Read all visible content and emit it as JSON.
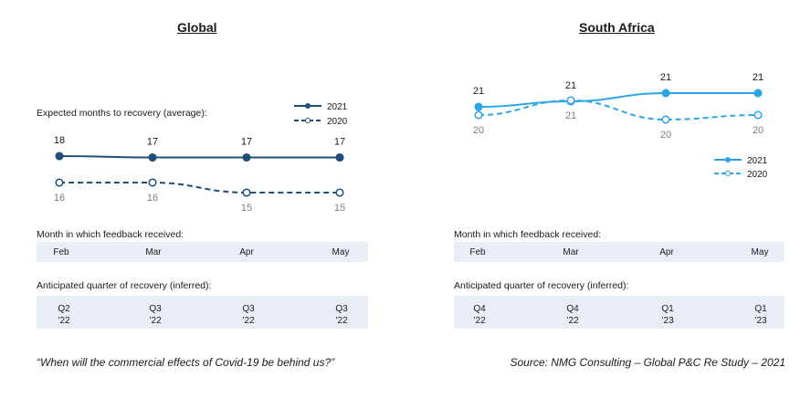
{
  "footer": {
    "quote": "“When will the commercial effects of Covid-19  be behind us?”",
    "source": "Source: NMG Consulting  – Global P&C Re Study – 2021"
  },
  "colors": {
    "global": "#1f4e79",
    "south_africa": "#2ea4e8",
    "band": "#e9eef6"
  },
  "chart_data": [
    {
      "type": "line",
      "title": "Global",
      "ylabel": "Expected months to recovery (average):",
      "categories": [
        "Feb",
        "Mar",
        "Apr",
        "May"
      ],
      "series": [
        {
          "name": "2021",
          "values": [
            18,
            17,
            17,
            17
          ],
          "style": "solid"
        },
        {
          "name": "2020",
          "values": [
            16,
            16,
            15,
            15
          ],
          "style": "dashed"
        }
      ],
      "legend": "top-right",
      "grid": false,
      "month_caption": "Month in which feedback received:",
      "quarter_caption": "Anticipated quarter of recovery (inferred):",
      "quarters": [
        {
          "q": "Q2",
          "y": "’22"
        },
        {
          "q": "Q3",
          "y": "’22"
        },
        {
          "q": "Q3",
          "y": "’22"
        },
        {
          "q": "Q3",
          "y": "’22"
        }
      ]
    },
    {
      "type": "line",
      "title": "South Africa",
      "categories": [
        "Feb",
        "Mar",
        "Apr",
        "May"
      ],
      "series": [
        {
          "name": "2021",
          "values": [
            21,
            21,
            21,
            21
          ],
          "style": "solid"
        },
        {
          "name": "2020",
          "values": [
            20,
            21,
            20,
            20
          ],
          "style": "dashed"
        }
      ],
      "legend": "bottom-right",
      "grid": false,
      "month_caption": "Month in which feedback received:",
      "quarter_caption": "Anticipated quarter of recovery (inferred):",
      "quarters": [
        {
          "q": "Q4",
          "y": "’22"
        },
        {
          "q": "Q4",
          "y": "’22"
        },
        {
          "q": "Q1",
          "y": "’23"
        },
        {
          "q": "Q1",
          "y": "’23"
        }
      ]
    }
  ]
}
